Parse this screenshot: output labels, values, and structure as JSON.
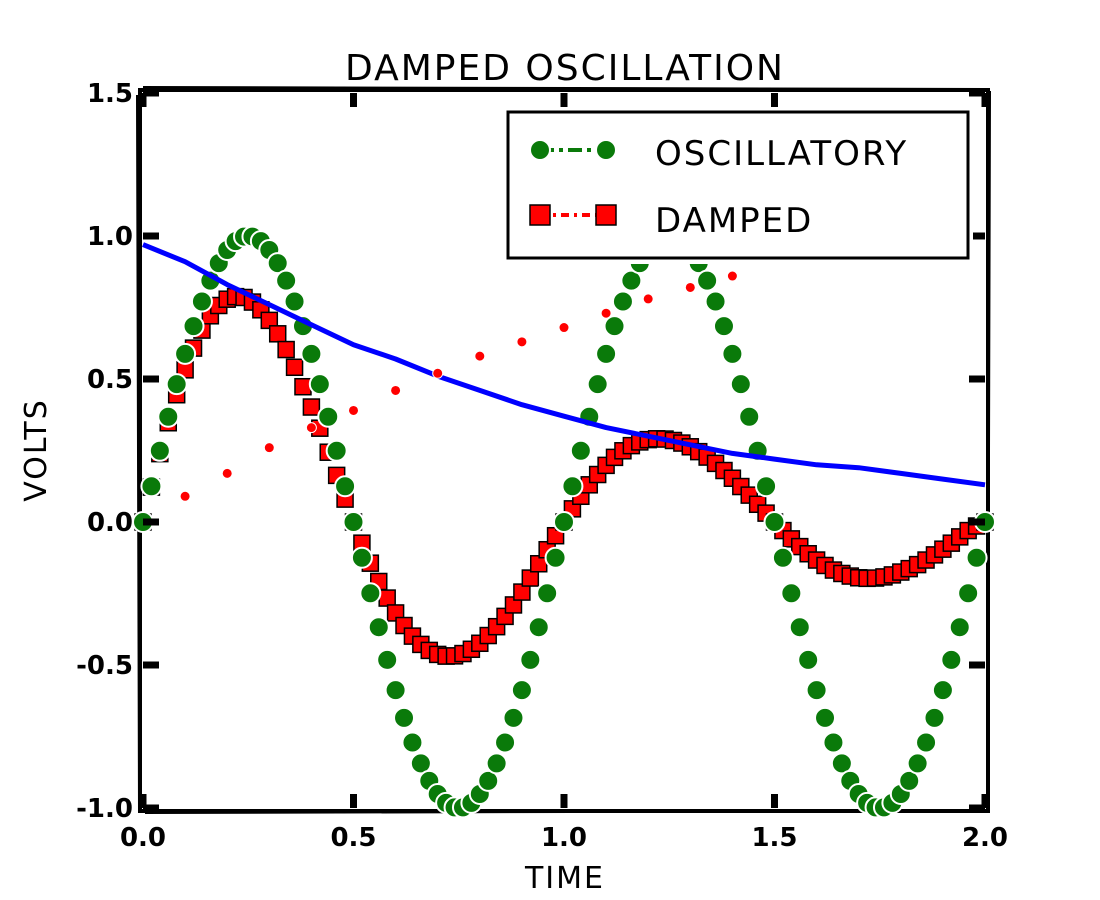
{
  "chart_data": {
    "type": "scatter",
    "title": "DAMPED OSCILLATION",
    "xlabel": "TIME",
    "ylabel": "VOLTS",
    "xlim": [
      0.0,
      2.0
    ],
    "ylim": [
      -1.0,
      1.5
    ],
    "xticks": [
      "0.0",
      "0.5",
      "1.0",
      "1.5",
      "2.0"
    ],
    "yticks": [
      "-1.0",
      "-0.5",
      "0.0",
      "0.5",
      "1.0",
      "1.5"
    ],
    "legend_position": "top-right",
    "series": [
      {
        "name": "OSCILLATORY",
        "color": "#0a7a0a",
        "marker": "circle",
        "function": "sin(2*pi*t)",
        "x": [
          0.0,
          0.02,
          0.04,
          0.06,
          0.08,
          0.1,
          0.12,
          0.14,
          0.16,
          0.18,
          0.2,
          0.22,
          0.24,
          0.26,
          0.28,
          0.3,
          0.32,
          0.34,
          0.36,
          0.38,
          0.4,
          0.42,
          0.44,
          0.46,
          0.48,
          0.5,
          0.52,
          0.54,
          0.56,
          0.58,
          0.6,
          0.62,
          0.64,
          0.66,
          0.68,
          0.7,
          0.72,
          0.74,
          0.76,
          0.78,
          0.8,
          0.82,
          0.84,
          0.86,
          0.88,
          0.9,
          0.92,
          0.94,
          0.96,
          0.98,
          1.0,
          1.02,
          1.04,
          1.06,
          1.08,
          1.1,
          1.12,
          1.14,
          1.16,
          1.18,
          1.2,
          1.22,
          1.24,
          1.26,
          1.28,
          1.3,
          1.32,
          1.34,
          1.36,
          1.38,
          1.4,
          1.42,
          1.44,
          1.46,
          1.48,
          1.5,
          1.52,
          1.54,
          1.56,
          1.58,
          1.6,
          1.62,
          1.64,
          1.66,
          1.68,
          1.7,
          1.72,
          1.74,
          1.76,
          1.78,
          1.8,
          1.82,
          1.84,
          1.86,
          1.88,
          1.9,
          1.92,
          1.94,
          1.96,
          1.98,
          2.0
        ],
        "y": [
          0.0,
          0.125,
          0.249,
          0.368,
          0.482,
          0.588,
          0.685,
          0.771,
          0.844,
          0.905,
          0.951,
          0.982,
          0.998,
          0.998,
          0.982,
          0.951,
          0.905,
          0.844,
          0.771,
          0.685,
          0.588,
          0.482,
          0.368,
          0.249,
          0.125,
          0.0,
          -0.125,
          -0.249,
          -0.368,
          -0.482,
          -0.588,
          -0.685,
          -0.771,
          -0.844,
          -0.905,
          -0.951,
          -0.982,
          -0.998,
          -0.998,
          -0.982,
          -0.951,
          -0.905,
          -0.844,
          -0.771,
          -0.685,
          -0.588,
          -0.482,
          -0.368,
          -0.249,
          -0.125,
          0.0,
          0.125,
          0.249,
          0.368,
          0.482,
          0.588,
          0.685,
          0.771,
          0.844,
          0.905,
          0.951,
          0.982,
          0.998,
          0.998,
          0.982,
          0.951,
          0.905,
          0.844,
          0.771,
          0.685,
          0.588,
          0.482,
          0.368,
          0.249,
          0.125,
          0.0,
          -0.125,
          -0.249,
          -0.368,
          -0.482,
          -0.588,
          -0.685,
          -0.771,
          -0.844,
          -0.905,
          -0.951,
          -0.982,
          -0.998,
          -0.998,
          -0.982,
          -0.951,
          -0.905,
          -0.844,
          -0.771,
          -0.685,
          -0.588,
          -0.482,
          -0.368,
          -0.249,
          -0.125,
          0.0
        ]
      },
      {
        "name": "DAMPED",
        "color": "#ff0000",
        "marker": "square",
        "x": [
          0.0,
          0.02,
          0.04,
          0.06,
          0.08,
          0.1,
          0.12,
          0.14,
          0.16,
          0.18,
          0.2,
          0.22,
          0.24,
          0.26,
          0.28,
          0.3,
          0.32,
          0.34,
          0.36,
          0.38,
          0.4,
          0.42,
          0.44,
          0.46,
          0.48,
          0.5,
          0.52,
          0.54,
          0.56,
          0.58,
          0.6,
          0.62,
          0.64,
          0.66,
          0.68,
          0.7,
          0.72,
          0.74,
          0.76,
          0.78,
          0.8,
          0.82,
          0.84,
          0.86,
          0.88,
          0.9,
          0.92,
          0.94,
          0.96,
          0.98,
          1.0,
          1.02,
          1.04,
          1.06,
          1.08,
          1.1,
          1.12,
          1.14,
          1.16,
          1.18,
          1.2,
          1.22,
          1.24,
          1.26,
          1.28,
          1.3,
          1.32,
          1.34,
          1.36,
          1.38,
          1.4,
          1.42,
          1.44,
          1.46,
          1.48,
          1.5,
          1.52,
          1.54,
          1.56,
          1.58,
          1.6,
          1.62,
          1.64,
          1.66,
          1.68,
          1.7,
          1.72,
          1.74,
          1.76,
          1.78,
          1.8,
          1.82,
          1.84,
          1.86,
          1.88,
          1.9,
          1.92,
          1.94,
          1.96,
          1.98,
          2.0
        ],
        "y": [
          0.0,
          0.122,
          0.239,
          0.347,
          0.445,
          0.532,
          0.608,
          0.671,
          0.721,
          0.757,
          0.779,
          0.788,
          0.785,
          0.769,
          0.742,
          0.705,
          0.658,
          0.603,
          0.541,
          0.473,
          0.402,
          0.328,
          0.244,
          0.163,
          0.08,
          0.0,
          -0.074,
          -0.144,
          -0.208,
          -0.266,
          -0.318,
          -0.362,
          -0.399,
          -0.428,
          -0.449,
          -0.463,
          -0.469,
          -0.468,
          -0.46,
          -0.445,
          -0.424,
          -0.397,
          -0.366,
          -0.33,
          -0.29,
          -0.245,
          -0.196,
          -0.146,
          -0.097,
          -0.048,
          0.0,
          0.046,
          0.09,
          0.13,
          0.166,
          0.198,
          0.226,
          0.249,
          0.267,
          0.28,
          0.288,
          0.291,
          0.29,
          0.285,
          0.276,
          0.263,
          0.246,
          0.227,
          0.205,
          0.18,
          0.153,
          0.124,
          0.094,
          0.062,
          0.031,
          0.0,
          -0.03,
          -0.059,
          -0.086,
          -0.111,
          -0.133,
          -0.152,
          -0.168,
          -0.18,
          -0.189,
          -0.195,
          -0.197,
          -0.196,
          -0.192,
          -0.185,
          -0.175,
          -0.163,
          -0.149,
          -0.133,
          -0.115,
          -0.095,
          -0.074,
          -0.052,
          -0.03,
          -0.014,
          0.0
        ]
      },
      {
        "name": "",
        "color": "#0000ff",
        "marker": "line",
        "x": [
          0.0,
          0.1,
          0.2,
          0.3,
          0.4,
          0.5,
          0.6,
          0.7,
          0.8,
          0.9,
          1.0,
          1.1,
          1.2,
          1.3,
          1.4,
          1.5,
          1.6,
          1.7,
          1.8,
          1.9,
          2.0
        ],
        "y": [
          0.97,
          0.91,
          0.83,
          0.76,
          0.69,
          0.62,
          0.57,
          0.51,
          0.46,
          0.41,
          0.37,
          0.33,
          0.3,
          0.27,
          0.24,
          0.22,
          0.2,
          0.19,
          0.17,
          0.15,
          0.13
        ]
      },
      {
        "name": "",
        "color": "#ff0000",
        "marker": "dot",
        "x": [
          0.1,
          0.2,
          0.3,
          0.4,
          0.5,
          0.6,
          0.7,
          0.8,
          0.9,
          1.0,
          1.1,
          1.2,
          1.3,
          1.4
        ],
        "y": [
          0.09,
          0.17,
          0.26,
          0.33,
          0.39,
          0.46,
          0.52,
          0.58,
          0.63,
          0.68,
          0.73,
          0.78,
          0.82,
          0.86
        ]
      }
    ]
  }
}
